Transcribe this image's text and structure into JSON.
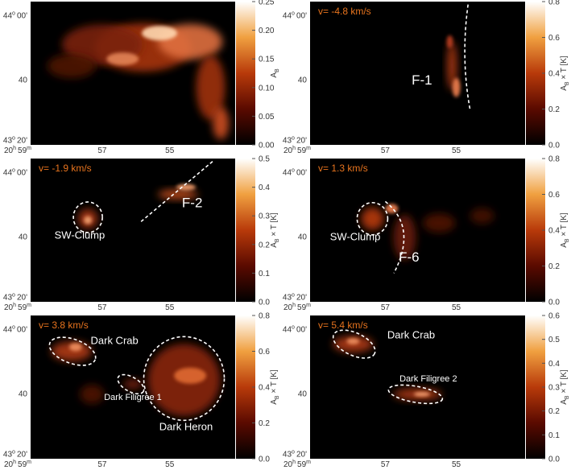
{
  "axes": {
    "yticks": [
      {
        "deg": "44",
        "sup": "o",
        "min": "00'"
      },
      "40",
      {
        "deg": "43",
        "sup": "o",
        "min": "20'"
      }
    ],
    "xticks": [
      {
        "h": "20",
        "hsup": "h",
        "m": "59",
        "msup": "m"
      },
      "57",
      "55"
    ]
  },
  "panels": [
    {
      "colorbar": {
        "main": "A",
        "sub": "B"
      },
      "ticks": [
        "0.00",
        "0.05",
        "0.10",
        "0.15",
        "0.20",
        "0.25"
      ],
      "labels": []
    },
    {
      "velocity": "v= -4.8 km/s",
      "colorbar": {
        "main": "A",
        "sub": "B",
        "rest": " × T [K]"
      },
      "ticks": [
        "0.0",
        "0.2",
        "0.4",
        "0.6",
        "0.8"
      ],
      "labels": [
        "F-1"
      ]
    },
    {
      "velocity": "v= -1.9 km/s",
      "colorbar": {
        "main": "A",
        "sub": "B",
        "rest": " × T [K]"
      },
      "ticks": [
        "0.0",
        "0.1",
        "0.2",
        "0.3",
        "0.4",
        "0.5"
      ],
      "labels": [
        "F-2",
        "SW-Clump"
      ]
    },
    {
      "velocity": "v=  1.3 km/s",
      "colorbar": {
        "main": "A",
        "sub": "B",
        "rest": " × T [K]"
      },
      "ticks": [
        "0.0",
        "0.2",
        "0.4",
        "0.6",
        "0.8"
      ],
      "labels": [
        "SW-Clump",
        "F-6"
      ]
    },
    {
      "velocity": "v=  3.8 km/s",
      "colorbar": {
        "main": "A",
        "sub": "B",
        "rest": " × T [K]"
      },
      "ticks": [
        "0.0",
        "0.2",
        "0.4",
        "0.6",
        "0.8"
      ],
      "labels": [
        "Dark Crab",
        "Dark Filigree 1",
        "Dark Heron"
      ]
    },
    {
      "velocity": "v=  5.4 km/s",
      "colorbar": {
        "main": "A",
        "sub": "B",
        "rest": " × T [K]"
      },
      "ticks": [
        "0.0",
        "0.1",
        "0.2",
        "0.3",
        "0.4",
        "0.5",
        "0.6"
      ],
      "labels": [
        "Dark Crab",
        "Dark Filigree 2"
      ]
    }
  ]
}
